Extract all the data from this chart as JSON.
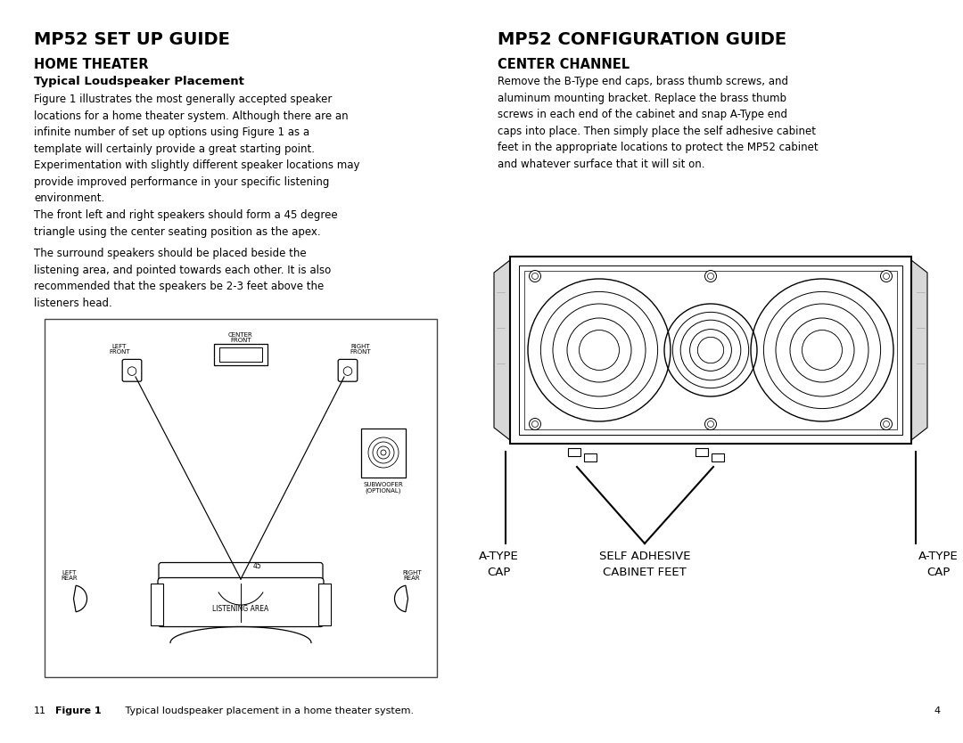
{
  "bg_color": "#ffffff",
  "left_title": "MP52 SET UP GUIDE",
  "left_sub1": "HOME THEATER",
  "left_sub2": "Typical Loudspeaker Placement",
  "left_para1": "Figure 1 illustrates the most generally accepted speaker\nlocations for a home theater system. Although there are an\ninfinite number of set up options using Figure 1 as a\ntemplate will certainly provide a great starting point.\nExperimentation with slightly different speaker locations may\nprovide improved performance in your specific listening\nenvironment.",
  "left_para2": "The front left and right speakers should form a 45 degree\ntriangle using the center seating position as the apex.",
  "left_para3": "The surround speakers should be placed beside the\nlistening area, and pointed towards each other. It is also\nrecommended that the speakers be 2-3 feet above the\nlisteners head.",
  "right_title": "MP52 CONFIGURATION GUIDE",
  "right_sub1": "CENTER CHANNEL",
  "right_para1": "Remove the B-Type end caps, brass thumb screws, and\naluminum mounting bracket. Replace the brass thumb\nscrews in each end of the cabinet and snap A-Type end\ncaps into place. Then simply place the self adhesive cabinet\nfeet in the appropriate locations to protect the MP52 cabinet\nand whatever surface that it will sit on.",
  "figure_caption_bold": "Figure 1",
  "figure_caption_rest": "   Typical loudspeaker placement in a home theater system.",
  "page_left": "11",
  "page_right": "4",
  "text_color": "#000000",
  "line_color": "#000000"
}
